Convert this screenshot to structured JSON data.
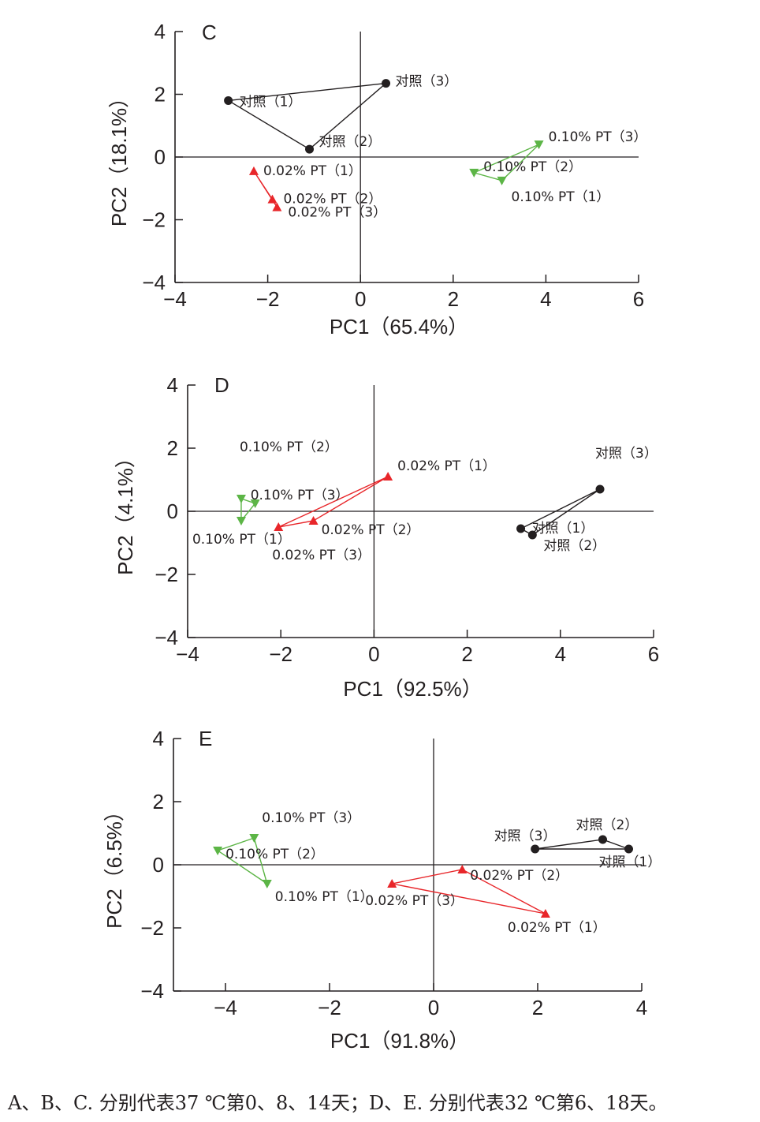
{
  "caption": "A、B、C. 分别代表37 ℃第0、8、14天；D、E. 分别代表32 ℃第6、18天。",
  "colors": {
    "control": "#231f20",
    "pt002": "#e8262a",
    "pt010": "#5cb546",
    "axis": "#231f20"
  },
  "chart_data": [
    {
      "type": "scatter",
      "panel_label": "C",
      "xlabel": "PC1（65.4%）",
      "ylabel": "PC2（18.1%）",
      "xlim": [
        -4,
        6
      ],
      "ylim": [
        -4,
        4
      ],
      "xticks": [
        -4,
        -2,
        0,
        2,
        4,
        6
      ],
      "yticks": [
        -4,
        -2,
        0,
        2,
        4
      ],
      "tick_labels_x": [
        "−4",
        "−2",
        "0",
        "2",
        "4",
        "6"
      ],
      "tick_labels_y": [
        "−4",
        "−2",
        "0",
        "2",
        "4"
      ],
      "series": [
        {
          "marker": "circle",
          "color": "#231f20",
          "points": [
            {
              "x": -2.85,
              "y": 1.8,
              "label": "对照（1）"
            },
            {
              "x": -1.1,
              "y": 0.25,
              "label": "对照（2）"
            },
            {
              "x": 0.55,
              "y": 2.35,
              "label": "对照（3）"
            }
          ]
        },
        {
          "marker": "triangle-up",
          "color": "#e8262a",
          "points": [
            {
              "x": -2.3,
              "y": -0.45,
              "label": "0.02% PT（1）"
            },
            {
              "x": -1.9,
              "y": -1.35,
              "label": "0.02% PT（2）"
            },
            {
              "x": -1.8,
              "y": -1.6,
              "label": "0.02% PT（3）"
            }
          ]
        },
        {
          "marker": "triangle-down",
          "color": "#5cb546",
          "points": [
            {
              "x": 3.05,
              "y": -0.75,
              "label": "0.10% PT（1）"
            },
            {
              "x": 2.45,
              "y": -0.5,
              "label": "0.10% PT（2）"
            },
            {
              "x": 3.85,
              "y": 0.4,
              "label": "0.10% PT（3）"
            }
          ]
        }
      ]
    },
    {
      "type": "scatter",
      "panel_label": "D",
      "xlabel": "PC1（92.5%）",
      "ylabel": "PC2（4.1%）",
      "xlim": [
        -4,
        6
      ],
      "ylim": [
        -4,
        4
      ],
      "xticks": [
        -4,
        -2,
        0,
        2,
        4,
        6
      ],
      "yticks": [
        -4,
        -2,
        0,
        2,
        4
      ],
      "tick_labels_x": [
        "−4",
        "−2",
        "0",
        "2",
        "4",
        "6"
      ],
      "tick_labels_y": [
        "−4",
        "−2",
        "0",
        "2",
        "4"
      ],
      "series": [
        {
          "marker": "circle",
          "color": "#231f20",
          "points": [
            {
              "x": 3.15,
              "y": -0.55,
              "label": "对照（1）"
            },
            {
              "x": 3.4,
              "y": -0.75,
              "label": "对照（2）"
            },
            {
              "x": 4.85,
              "y": 0.7,
              "label": "对照（3）"
            }
          ]
        },
        {
          "marker": "triangle-up",
          "color": "#e8262a",
          "points": [
            {
              "x": 0.3,
              "y": 1.1,
              "label": "0.02% PT（1）"
            },
            {
              "x": -1.3,
              "y": -0.3,
              "label": "0.02% PT（2）"
            },
            {
              "x": -2.05,
              "y": -0.5,
              "label": "0.02% PT（3）"
            }
          ]
        },
        {
          "marker": "triangle-down",
          "color": "#5cb546",
          "points": [
            {
              "x": -2.85,
              "y": -0.3,
              "label": "0.10% PT（1）"
            },
            {
              "x": -2.85,
              "y": 0.4,
              "label": "0.10% PT（2）"
            },
            {
              "x": -2.55,
              "y": 0.25,
              "label": "0.10% PT（3）"
            }
          ]
        }
      ]
    },
    {
      "type": "scatter",
      "panel_label": "E",
      "xlabel": "PC1（91.8%）",
      "ylabel": "PC2（6.5%）",
      "xlim": [
        -5,
        4
      ],
      "ylim": [
        -4,
        4
      ],
      "xticks": [
        -4,
        -2,
        0,
        2,
        4
      ],
      "yticks": [
        -4,
        -2,
        0,
        2,
        4
      ],
      "tick_labels_x": [
        "−4",
        "−2",
        "0",
        "2",
        "4"
      ],
      "tick_labels_y": [
        "−4",
        "−2",
        "0",
        "2",
        "4"
      ],
      "series": [
        {
          "marker": "circle",
          "color": "#231f20",
          "points": [
            {
              "x": 3.75,
              "y": 0.5,
              "label": "对照（1）"
            },
            {
              "x": 3.25,
              "y": 0.8,
              "label": "对照（2）"
            },
            {
              "x": 1.95,
              "y": 0.5,
              "label": "对照（3）"
            }
          ]
        },
        {
          "marker": "triangle-up",
          "color": "#e8262a",
          "points": [
            {
              "x": 2.15,
              "y": -1.55,
              "label": "0.02% PT（1）"
            },
            {
              "x": 0.55,
              "y": -0.15,
              "label": "0.02% PT（2）"
            },
            {
              "x": -0.8,
              "y": -0.6,
              "label": "0.02% PT（3）"
            }
          ]
        },
        {
          "marker": "triangle-down",
          "color": "#5cb546",
          "points": [
            {
              "x": -3.2,
              "y": -0.6,
              "label": "0.10% PT（1）"
            },
            {
              "x": -4.15,
              "y": 0.45,
              "label": "0.10% PT（2）"
            },
            {
              "x": -3.45,
              "y": 0.85,
              "label": "0.10% PT（3）"
            }
          ]
        }
      ]
    }
  ]
}
